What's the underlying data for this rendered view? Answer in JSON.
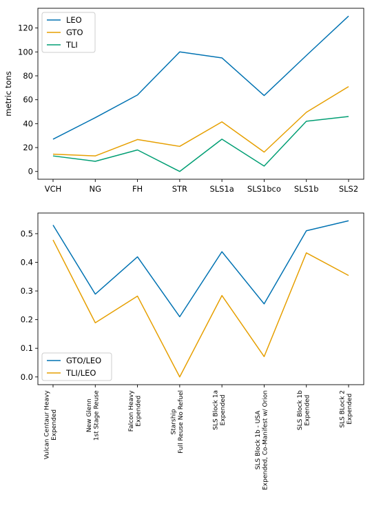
{
  "chart_data": [
    {
      "type": "line",
      "categories": [
        "VCH",
        "NG",
        "FH",
        "STR",
        "SLS1a",
        "SLS1bco",
        "SLS1b",
        "SLS2"
      ],
      "series": [
        {
          "name": "LEO",
          "color": "#0072B2",
          "values": [
            27,
            45,
            64,
            100,
            95,
            63.5,
            97,
            130
          ]
        },
        {
          "name": "GTO",
          "color": "#E69F00",
          "values": [
            14.5,
            13,
            26.7,
            21,
            41.5,
            16.2,
            49.5,
            71
          ]
        },
        {
          "name": "TLI",
          "color": "#009E73",
          "values": [
            13,
            8.5,
            18,
            0,
            27,
            4.5,
            42,
            46
          ]
        }
      ],
      "ylabel": "metric tons",
      "xlabel": "",
      "yticks": [
        0,
        20,
        40,
        60,
        80,
        100,
        120
      ],
      "ylim": [
        -6.5,
        136.5
      ],
      "legend": "top-left",
      "grid": false
    },
    {
      "type": "line",
      "categories": [
        [
          "Vulcan Centaur Heavy",
          "Expended"
        ],
        [
          "New Glenn",
          "1st Stage Reuse"
        ],
        [
          "Falcon Heavy",
          "Expended"
        ],
        [
          "Starship",
          "Full Reuse No Refuel"
        ],
        [
          "SLS Block 1a",
          "Expended"
        ],
        [
          "SLS Block 1b - USA",
          "Expended, Co-Manifest w/ Orion"
        ],
        [
          "SLS Block 1b",
          "Expended"
        ],
        [
          "SLS BLock 2",
          "Expended"
        ]
      ],
      "series": [
        {
          "name": "GTO/LEO",
          "color": "#0072B2",
          "values": [
            0.53,
            0.289,
            0.419,
            0.21,
            0.437,
            0.255,
            0.51,
            0.545
          ]
        },
        {
          "name": "TLI/LEO",
          "color": "#E69F00",
          "values": [
            0.478,
            0.189,
            0.282,
            0.0,
            0.284,
            0.071,
            0.433,
            0.354
          ]
        }
      ],
      "ylabel": "",
      "xlabel": "",
      "yticks": [
        "0.0",
        "0.1",
        "0.2",
        "0.3",
        "0.4",
        "0.5"
      ],
      "ylim": [
        -0.027,
        0.572
      ],
      "legend": "bottom-left",
      "grid": false
    }
  ]
}
